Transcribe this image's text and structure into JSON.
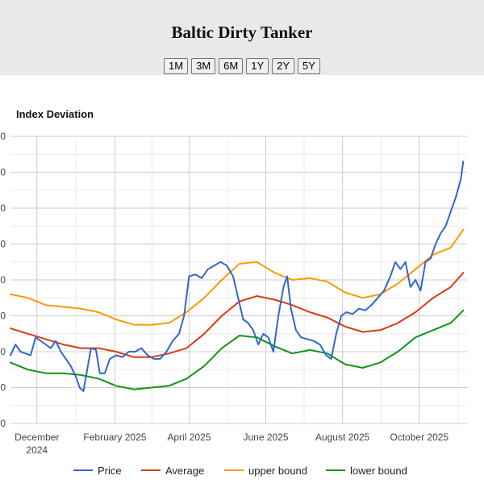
{
  "header": {
    "title": "Baltic Dirty Tanker",
    "range_buttons": [
      "1M",
      "3M",
      "6M",
      "1Y",
      "2Y",
      "5Y"
    ]
  },
  "chart_data": {
    "type": "line",
    "title": "Index Deviation",
    "xlabel": "",
    "ylabel": "",
    "grid": true,
    "legend_position": "bottom",
    "x_ticks": [
      {
        "date": "2024-12-01",
        "label": [
          "December",
          "2024"
        ]
      },
      {
        "date": "2025-02-01",
        "label": [
          "February 2025"
        ]
      },
      {
        "date": "2025-04-01",
        "label": [
          "April 2025"
        ]
      },
      {
        "date": "2025-06-01",
        "label": [
          "June 2025"
        ]
      },
      {
        "date": "2025-08-01",
        "label": [
          "August 2025"
        ]
      },
      {
        "date": "2025-10-01",
        "label": [
          "October 2025"
        ]
      }
    ],
    "x_range": [
      "2024-11-10",
      "2025-11-08"
    ],
    "y_range": [
      0,
      8
    ],
    "y_tick_labels": [
      "0",
      "0",
      "0",
      "0",
      "0",
      "0",
      "0",
      "0",
      "0"
    ],
    "series": [
      {
        "name": "Price",
        "color": "#3366cc",
        "points": [
          [
            "2024-11-10",
            1.9
          ],
          [
            "2024-11-14",
            2.2
          ],
          [
            "2024-11-18",
            2.0
          ],
          [
            "2024-11-22",
            1.95
          ],
          [
            "2024-11-26",
            1.9
          ],
          [
            "2024-11-30",
            2.4
          ],
          [
            "2024-12-04",
            2.3
          ],
          [
            "2024-12-08",
            2.2
          ],
          [
            "2024-12-12",
            2.1
          ],
          [
            "2024-12-16",
            2.3
          ],
          [
            "2024-12-20",
            2.0
          ],
          [
            "2024-12-24",
            1.8
          ],
          [
            "2024-12-28",
            1.6
          ],
          [
            "2025-01-01",
            1.3
          ],
          [
            "2025-01-04",
            1.0
          ],
          [
            "2025-01-07",
            0.9
          ],
          [
            "2025-01-10",
            1.5
          ],
          [
            "2025-01-13",
            2.1
          ],
          [
            "2025-01-17",
            2.05
          ],
          [
            "2025-01-20",
            1.4
          ],
          [
            "2025-01-24",
            1.4
          ],
          [
            "2025-01-28",
            1.8
          ],
          [
            "2025-02-02",
            1.9
          ],
          [
            "2025-02-07",
            1.85
          ],
          [
            "2025-02-12",
            2.0
          ],
          [
            "2025-02-17",
            2.0
          ],
          [
            "2025-02-22",
            2.1
          ],
          [
            "2025-02-27",
            1.9
          ],
          [
            "2025-03-04",
            1.8
          ],
          [
            "2025-03-09",
            1.8
          ],
          [
            "2025-03-14",
            2.0
          ],
          [
            "2025-03-19",
            2.3
          ],
          [
            "2025-03-24",
            2.5
          ],
          [
            "2025-03-28",
            3.0
          ],
          [
            "2025-04-01",
            4.1
          ],
          [
            "2025-04-06",
            4.15
          ],
          [
            "2025-04-11",
            4.05
          ],
          [
            "2025-04-16",
            4.3
          ],
          [
            "2025-04-21",
            4.4
          ],
          [
            "2025-04-26",
            4.5
          ],
          [
            "2025-05-01",
            4.4
          ],
          [
            "2025-05-06",
            4.1
          ],
          [
            "2025-05-10",
            3.5
          ],
          [
            "2025-05-14",
            2.9
          ],
          [
            "2025-05-18",
            2.8
          ],
          [
            "2025-05-22",
            2.6
          ],
          [
            "2025-05-26",
            2.2
          ],
          [
            "2025-05-30",
            2.5
          ],
          [
            "2025-06-03",
            2.4
          ],
          [
            "2025-06-07",
            2.0
          ],
          [
            "2025-06-11",
            3.0
          ],
          [
            "2025-06-15",
            3.8
          ],
          [
            "2025-06-18",
            4.1
          ],
          [
            "2025-06-21",
            3.2
          ],
          [
            "2025-06-25",
            2.6
          ],
          [
            "2025-06-29",
            2.4
          ],
          [
            "2025-07-04",
            2.35
          ],
          [
            "2025-07-09",
            2.3
          ],
          [
            "2025-07-14",
            2.2
          ],
          [
            "2025-07-19",
            1.9
          ],
          [
            "2025-07-23",
            1.8
          ],
          [
            "2025-07-27",
            2.5
          ],
          [
            "2025-07-31",
            3.0
          ],
          [
            "2025-08-04",
            3.1
          ],
          [
            "2025-08-09",
            3.05
          ],
          [
            "2025-08-14",
            3.2
          ],
          [
            "2025-08-19",
            3.15
          ],
          [
            "2025-08-24",
            3.3
          ],
          [
            "2025-08-29",
            3.5
          ],
          [
            "2025-09-03",
            3.7
          ],
          [
            "2025-09-08",
            4.1
          ],
          [
            "2025-09-12",
            4.5
          ],
          [
            "2025-09-16",
            4.3
          ],
          [
            "2025-09-20",
            4.5
          ],
          [
            "2025-09-24",
            3.8
          ],
          [
            "2025-09-28",
            4.0
          ],
          [
            "2025-10-02",
            3.7
          ],
          [
            "2025-10-06",
            4.5
          ],
          [
            "2025-10-10",
            4.6
          ],
          [
            "2025-10-14",
            5.0
          ],
          [
            "2025-10-18",
            5.3
          ],
          [
            "2025-10-22",
            5.5
          ],
          [
            "2025-10-26",
            5.9
          ],
          [
            "2025-10-30",
            6.3
          ],
          [
            "2025-11-03",
            6.8
          ],
          [
            "2025-11-05",
            7.3
          ]
        ]
      },
      {
        "name": "Average",
        "color": "#dc3912",
        "points": [
          [
            "2024-11-10",
            2.65
          ],
          [
            "2024-11-24",
            2.5
          ],
          [
            "2024-12-08",
            2.35
          ],
          [
            "2024-12-22",
            2.2
          ],
          [
            "2025-01-05",
            2.1
          ],
          [
            "2025-01-19",
            2.1
          ],
          [
            "2025-02-02",
            2.0
          ],
          [
            "2025-02-16",
            1.85
          ],
          [
            "2025-03-02",
            1.85
          ],
          [
            "2025-03-16",
            1.95
          ],
          [
            "2025-03-30",
            2.1
          ],
          [
            "2025-04-13",
            2.5
          ],
          [
            "2025-04-27",
            3.0
          ],
          [
            "2025-05-11",
            3.4
          ],
          [
            "2025-05-25",
            3.55
          ],
          [
            "2025-06-08",
            3.45
          ],
          [
            "2025-06-22",
            3.3
          ],
          [
            "2025-07-06",
            3.1
          ],
          [
            "2025-07-20",
            2.95
          ],
          [
            "2025-08-03",
            2.7
          ],
          [
            "2025-08-17",
            2.55
          ],
          [
            "2025-08-31",
            2.6
          ],
          [
            "2025-09-14",
            2.8
          ],
          [
            "2025-09-28",
            3.1
          ],
          [
            "2025-10-12",
            3.5
          ],
          [
            "2025-10-26",
            3.8
          ],
          [
            "2025-11-05",
            4.2
          ]
        ]
      },
      {
        "name": "upper bound",
        "color": "#ff9900",
        "points": [
          [
            "2024-11-10",
            3.6
          ],
          [
            "2024-11-24",
            3.5
          ],
          [
            "2024-12-08",
            3.3
          ],
          [
            "2024-12-22",
            3.25
          ],
          [
            "2025-01-05",
            3.2
          ],
          [
            "2025-01-19",
            3.1
          ],
          [
            "2025-02-02",
            2.9
          ],
          [
            "2025-02-16",
            2.75
          ],
          [
            "2025-03-02",
            2.75
          ],
          [
            "2025-03-16",
            2.8
          ],
          [
            "2025-03-30",
            3.1
          ],
          [
            "2025-04-13",
            3.5
          ],
          [
            "2025-04-27",
            4.0
          ],
          [
            "2025-05-11",
            4.45
          ],
          [
            "2025-05-25",
            4.5
          ],
          [
            "2025-06-08",
            4.2
          ],
          [
            "2025-06-22",
            4.0
          ],
          [
            "2025-07-06",
            4.05
          ],
          [
            "2025-07-20",
            3.95
          ],
          [
            "2025-08-03",
            3.65
          ],
          [
            "2025-08-17",
            3.5
          ],
          [
            "2025-08-31",
            3.6
          ],
          [
            "2025-09-14",
            3.9
          ],
          [
            "2025-09-28",
            4.3
          ],
          [
            "2025-10-12",
            4.7
          ],
          [
            "2025-10-26",
            4.9
          ],
          [
            "2025-11-05",
            5.4
          ]
        ]
      },
      {
        "name": "lower bound",
        "color": "#109618",
        "points": [
          [
            "2024-11-10",
            1.7
          ],
          [
            "2024-11-24",
            1.5
          ],
          [
            "2024-12-08",
            1.4
          ],
          [
            "2024-12-22",
            1.4
          ],
          [
            "2025-01-05",
            1.35
          ],
          [
            "2025-01-19",
            1.25
          ],
          [
            "2025-02-02",
            1.05
          ],
          [
            "2025-02-16",
            0.95
          ],
          [
            "2025-03-02",
            1.0
          ],
          [
            "2025-03-16",
            1.05
          ],
          [
            "2025-03-30",
            1.25
          ],
          [
            "2025-04-13",
            1.6
          ],
          [
            "2025-04-27",
            2.1
          ],
          [
            "2025-05-11",
            2.45
          ],
          [
            "2025-05-25",
            2.4
          ],
          [
            "2025-06-08",
            2.15
          ],
          [
            "2025-06-22",
            1.95
          ],
          [
            "2025-07-06",
            2.05
          ],
          [
            "2025-07-20",
            1.95
          ],
          [
            "2025-08-03",
            1.65
          ],
          [
            "2025-08-17",
            1.55
          ],
          [
            "2025-08-31",
            1.7
          ],
          [
            "2025-09-14",
            2.0
          ],
          [
            "2025-09-28",
            2.4
          ],
          [
            "2025-10-12",
            2.6
          ],
          [
            "2025-10-26",
            2.8
          ],
          [
            "2025-11-05",
            3.15
          ]
        ]
      }
    ]
  }
}
